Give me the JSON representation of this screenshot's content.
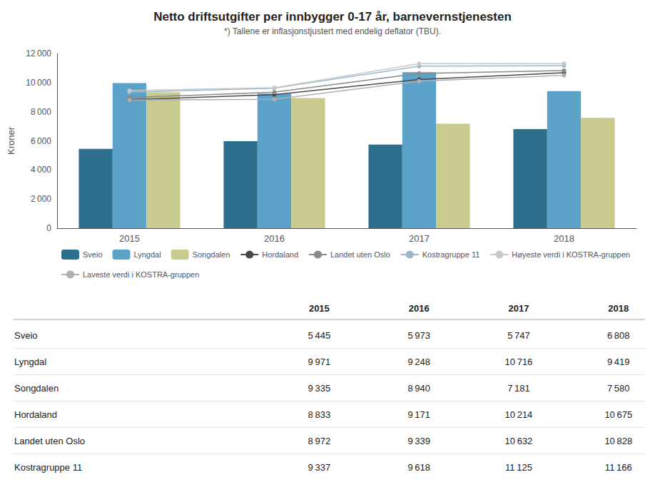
{
  "chart_data": {
    "type": "bar",
    "title": "Netto driftsutgifter per innbygger 0-17 år, barnevernstjenesten",
    "subtitle": "*) Tallene er inflasjonstjustert med endelig deflator (TBU).",
    "ylabel": "Kroner",
    "categories": [
      "2015",
      "2016",
      "2017",
      "2018"
    ],
    "series": [
      {
        "name": "Sveio",
        "type": "bar",
        "color": "#2e6f8e",
        "values": [
          5445,
          5973,
          5747,
          6808
        ]
      },
      {
        "name": "Lyngdal",
        "type": "bar",
        "color": "#5ba3c9",
        "values": [
          9971,
          9248,
          10716,
          9419
        ]
      },
      {
        "name": "Songdalen",
        "type": "bar",
        "color": "#c8ca8e",
        "values": [
          9335,
          8940,
          7181,
          7580
        ]
      },
      {
        "name": "Hordaland",
        "type": "line",
        "color": "#4a4a4a",
        "marker": "circle",
        "line_style": "solid",
        "values": [
          8833,
          9171,
          10214,
          10675
        ]
      },
      {
        "name": "Landet uten Oslo",
        "type": "line",
        "color": "#8a8a8a",
        "marker": "circle",
        "line_style": "solid",
        "values": [
          8972,
          9339,
          10632,
          10828
        ]
      },
      {
        "name": "Kostragruppe 11",
        "type": "line",
        "color": "#9ab8c8",
        "marker": "circle",
        "line_style": "solid",
        "values": [
          9337,
          9618,
          11125,
          11166
        ]
      },
      {
        "name": "Høyeste verdi i KOSTRA-gruppen",
        "type": "line",
        "color": "#c8c8c8",
        "marker": "circle",
        "line_style": "solid",
        "values": [
          9450,
          9650,
          11300,
          11300
        ]
      },
      {
        "name": "Laveste verdi i KOSTRA-gruppen",
        "type": "line",
        "color": "#b0b0b0",
        "marker": "circle",
        "line_style": "solid",
        "values": [
          8800,
          8850,
          10100,
          10500
        ]
      }
    ],
    "ylim": [
      0,
      12000
    ],
    "yticks": [
      0,
      {
        "value": 2000,
        "label": "2 000"
      },
      {
        "value": 4000,
        "label": "4 000"
      },
      {
        "value": 6000,
        "label": "6 000"
      },
      {
        "value": 8000,
        "label": "8 000"
      },
      {
        "value": 10000,
        "label": "10 000"
      },
      {
        "value": 12000,
        "label": "12 000"
      }
    ],
    "grid": false,
    "legend": "bottom",
    "table": {
      "columns": [
        "2015",
        "2016",
        "2017",
        "2018"
      ],
      "rows": [
        {
          "label": "Sveio",
          "values": [
            5445,
            5973,
            5747,
            6808
          ],
          "value_labels": [
            "5 445",
            "5 973",
            "5 747",
            "6 808"
          ]
        },
        {
          "label": "Lyngdal",
          "values": [
            9971,
            9248,
            10716,
            9419
          ],
          "value_labels": [
            "9 971",
            "9 248",
            "10 716",
            "9 419"
          ]
        },
        {
          "label": "Songdalen",
          "values": [
            9335,
            8940,
            7181,
            7580
          ],
          "value_labels": [
            "9 335",
            "8 940",
            "7 181",
            "7 580"
          ]
        },
        {
          "label": "Hordaland",
          "values": [
            8833,
            9171,
            10214,
            10675
          ],
          "value_labels": [
            "8 833",
            "9 171",
            "10 214",
            "10 675"
          ]
        },
        {
          "label": "Landet uten Oslo",
          "values": [
            8972,
            9339,
            10632,
            10828
          ],
          "value_labels": [
            "8 972",
            "9 339",
            "10 632",
            "10 828"
          ]
        },
        {
          "label": "Kostragruppe 11",
          "values": [
            9337,
            9618,
            11125,
            11166
          ],
          "value_labels": [
            "9 337",
            "9 618",
            "11 125",
            "11 166"
          ]
        }
      ]
    }
  }
}
